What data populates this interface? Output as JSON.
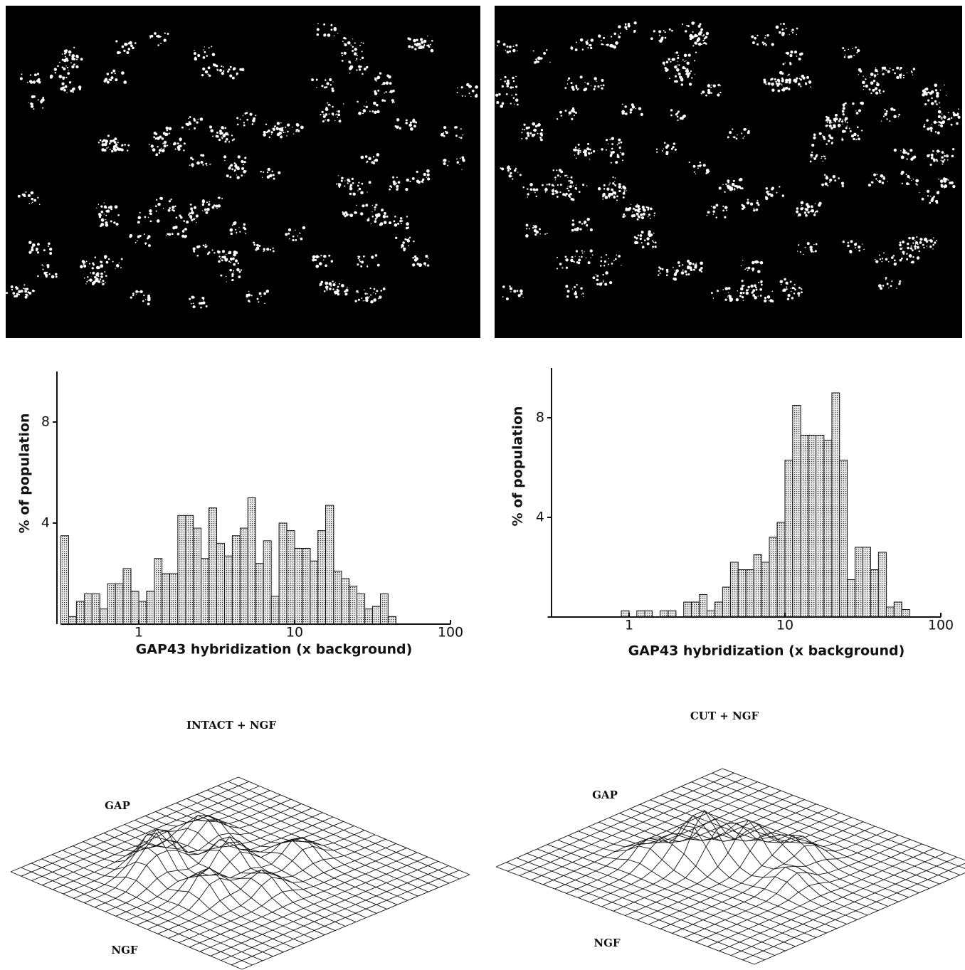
{
  "chart_data": [
    {
      "type": "histogram",
      "y_label": "% of population",
      "x_label": "GAP43 hybridization (x background)",
      "log_x": true,
      "xlim": [
        0.316,
        100
      ],
      "ylim": [
        0,
        10
      ],
      "xticks": [
        1,
        10,
        100
      ],
      "yticks": [
        4,
        8
      ],
      "bins": [
        0.316,
        0.355,
        0.398,
        0.447,
        0.501,
        0.562,
        0.631,
        0.708,
        0.794,
        0.891,
        1,
        1.12,
        1.26,
        1.41,
        1.58,
        1.78,
        2.0,
        2.24,
        2.51,
        2.82,
        3.16,
        3.55,
        3.98,
        4.47,
        5.01,
        5.62,
        6.31,
        7.08,
        7.94,
        8.91,
        10,
        11.2,
        12.6,
        14.1,
        15.8,
        17.8,
        20.0,
        22.4,
        25.1,
        28.2,
        31.6,
        35.5,
        39.8,
        44.7
      ],
      "values": [
        3.5,
        0.3,
        0.9,
        1.2,
        1.2,
        0.6,
        1.6,
        1.6,
        2.2,
        1.3,
        0.9,
        1.3,
        2.6,
        2.0,
        2.0,
        4.3,
        4.3,
        3.8,
        2.6,
        4.6,
        3.2,
        2.7,
        3.5,
        3.8,
        5.0,
        2.4,
        3.3,
        1.1,
        4.0,
        3.7,
        3.0,
        3.0,
        2.5,
        3.7,
        4.7,
        2.1,
        1.8,
        1.5,
        1.2,
        0.6,
        0.7,
        1.2,
        0.3
      ]
    },
    {
      "type": "histogram",
      "y_label": "% of population",
      "x_label": "GAP43 hybridization (x background)",
      "log_x": true,
      "xlim": [
        0.3,
        100
      ],
      "ylim": [
        0,
        10
      ],
      "xticks": [
        1,
        10,
        100
      ],
      "yticks": [
        4,
        8
      ],
      "bins": [
        0.891,
        1,
        1.12,
        1.26,
        1.41,
        1.58,
        1.78,
        2.0,
        2.24,
        2.51,
        2.82,
        3.16,
        3.55,
        3.98,
        4.47,
        5.01,
        5.62,
        6.31,
        7.08,
        7.94,
        8.91,
        10,
        11.2,
        12.6,
        14.1,
        15.8,
        17.8,
        20.0,
        22.4,
        25.1,
        28.2,
        31.6,
        35.5,
        39.8,
        44.7,
        50.1,
        56.2,
        63.1
      ],
      "values": [
        0.25,
        0,
        0.25,
        0.25,
        0,
        0.25,
        0.25,
        0,
        0.6,
        0.6,
        0.9,
        0.25,
        0.6,
        1.2,
        2.2,
        1.9,
        1.9,
        2.5,
        2.2,
        3.2,
        3.8,
        6.3,
        8.5,
        7.3,
        7.3,
        7.3,
        7.1,
        9.0,
        6.3,
        1.5,
        2.8,
        2.8,
        1.9,
        2.6,
        0.4,
        0.6,
        0.3
      ]
    }
  ],
  "surfaces": [
    {
      "title": "INTACT + NGF",
      "back_label": "GAP",
      "front_label": "NGF"
    },
    {
      "title": "CUT + NGF",
      "back_label": "GAP",
      "front_label": "NGF"
    }
  ]
}
